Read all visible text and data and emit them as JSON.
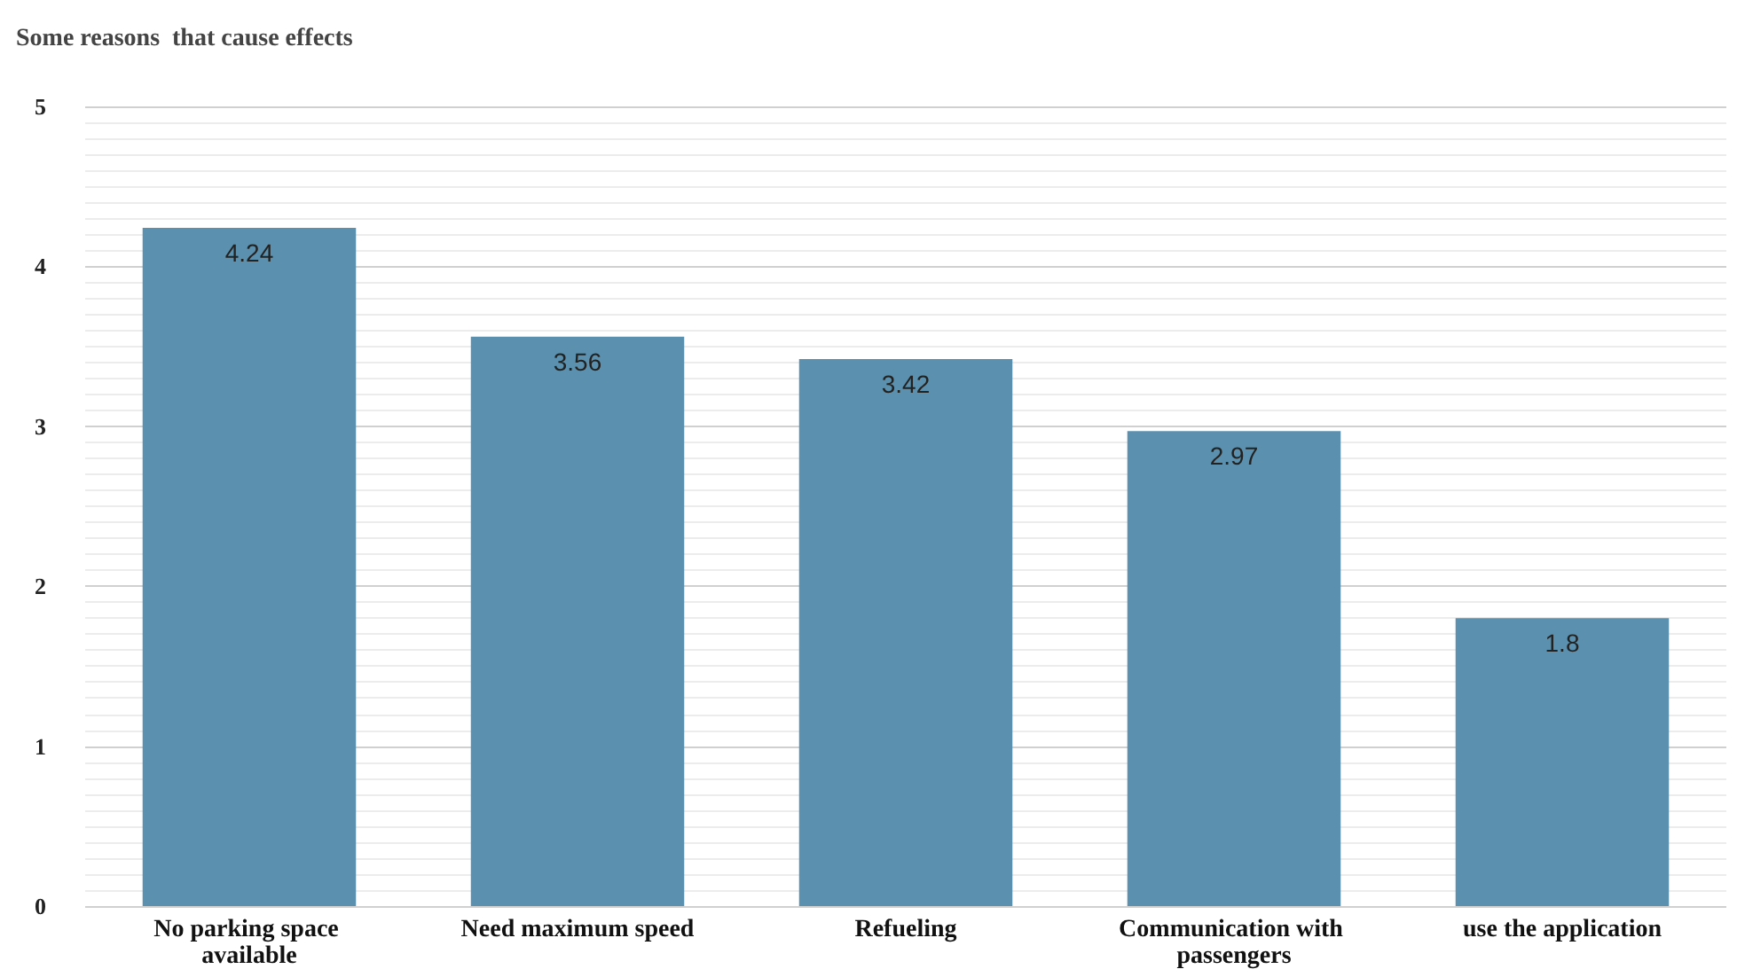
{
  "chart_data": {
    "type": "bar",
    "title": "Some reasons  that cause effects",
    "categories": [
      "No parking space available",
      "Need maximum speed",
      "Refueling",
      "Communication with passengers",
      "use the application"
    ],
    "values": [
      4.24,
      3.56,
      3.42,
      2.97,
      1.8
    ],
    "color": "#5b91ae",
    "ylim": [
      0,
      5
    ],
    "yticks": [
      0,
      1,
      2,
      3,
      4,
      5
    ],
    "grid": "y",
    "data_labels": true
  }
}
